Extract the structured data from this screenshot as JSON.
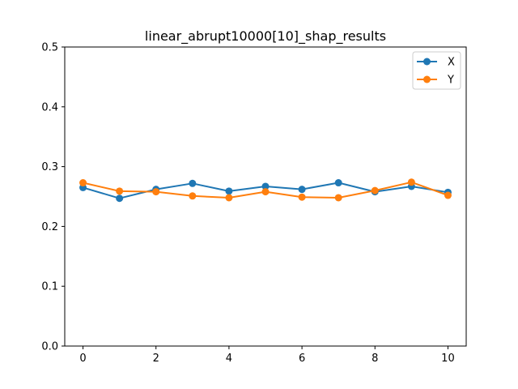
{
  "chart_data": {
    "type": "line",
    "title": "linear_abrupt10000[10]_shap_results",
    "xlabel": "",
    "ylabel": "",
    "x": [
      0,
      1,
      2,
      3,
      4,
      5,
      6,
      7,
      8,
      9,
      10
    ],
    "xlim": [
      -0.5,
      10.5
    ],
    "ylim": [
      0,
      0.5
    ],
    "xticks": [
      0,
      2,
      4,
      6,
      8,
      10
    ],
    "yticks": [
      0.0,
      0.1,
      0.2,
      0.3,
      0.4,
      0.5
    ],
    "xtick_labels": [
      "0",
      "2",
      "4",
      "6",
      "8",
      "10"
    ],
    "ytick_labels": [
      "0.0",
      "0.1",
      "0.2",
      "0.3",
      "0.4",
      "0.5"
    ],
    "grid": false,
    "legend_position": "top-right",
    "series": [
      {
        "name": "X",
        "color": "#1f77b4",
        "marker": "circle",
        "values": [
          0.265,
          0.247,
          0.262,
          0.272,
          0.259,
          0.267,
          0.262,
          0.273,
          0.258,
          0.267,
          0.257
        ]
      },
      {
        "name": "Y",
        "color": "#ff7f0e",
        "marker": "circle",
        "values": [
          0.273,
          0.259,
          0.258,
          0.251,
          0.248,
          0.258,
          0.249,
          0.248,
          0.26,
          0.274,
          0.252
        ]
      }
    ]
  }
}
